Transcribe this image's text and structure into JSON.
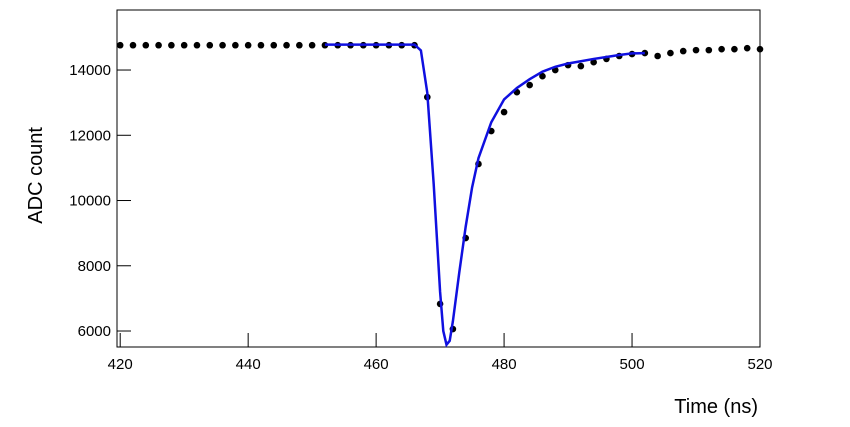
{
  "chart_data": {
    "type": "scatter",
    "x_label": "Time (ns)",
    "y_label": "ADC count",
    "xlim": [
      419.5,
      520
    ],
    "ylim": [
      5510,
      15840
    ],
    "xticks": [
      420,
      440,
      460,
      480,
      500,
      520
    ],
    "yticks": [
      6000,
      8000,
      10000,
      12000,
      14000
    ],
    "series": [
      {
        "color": "#000000",
        "x": [
          420,
          422,
          424,
          426,
          428,
          430,
          432,
          434,
          436,
          438,
          440,
          442,
          444,
          446,
          448,
          450,
          452,
          454,
          456,
          458,
          460,
          462,
          464,
          466,
          468,
          470,
          472,
          474,
          476,
          478,
          480,
          482,
          484,
          486,
          488,
          490,
          492,
          494,
          496,
          498,
          500,
          502,
          504,
          506,
          508,
          510,
          512,
          514,
          516,
          518,
          520
        ],
        "values": [
          14760,
          14760,
          14760,
          14760,
          14760,
          14760,
          14760,
          14760,
          14760,
          14760,
          14760,
          14760,
          14760,
          14760,
          14760,
          14760,
          14760,
          14760,
          14760,
          14760,
          14760,
          14760,
          14760,
          14760,
          13170,
          6830,
          6060,
          8850,
          11120,
          12130,
          12710,
          13320,
          13540,
          13810,
          14000,
          14150,
          14120,
          14240,
          14340,
          14430,
          14490,
          14520,
          14430,
          14520,
          14580,
          14610,
          14610,
          14640,
          14640,
          14670,
          14640
        ]
      },
      {
        "type": "line",
        "color": "#1010e0",
        "x": [
          452,
          466,
          467,
          468,
          469,
          470,
          470.5,
          471,
          471.5,
          472,
          473,
          474,
          475,
          476,
          478,
          480,
          482,
          484,
          486,
          488,
          490,
          492,
          494,
          496,
          498,
          500,
          502
        ],
        "values": [
          14780,
          14780,
          14600,
          13300,
          10500,
          7200,
          6000,
          5580,
          5700,
          6300,
          7800,
          9200,
          10400,
          11300,
          12400,
          13100,
          13450,
          13720,
          13950,
          14100,
          14200,
          14270,
          14340,
          14400,
          14460,
          14510,
          14520
        ]
      }
    ]
  }
}
